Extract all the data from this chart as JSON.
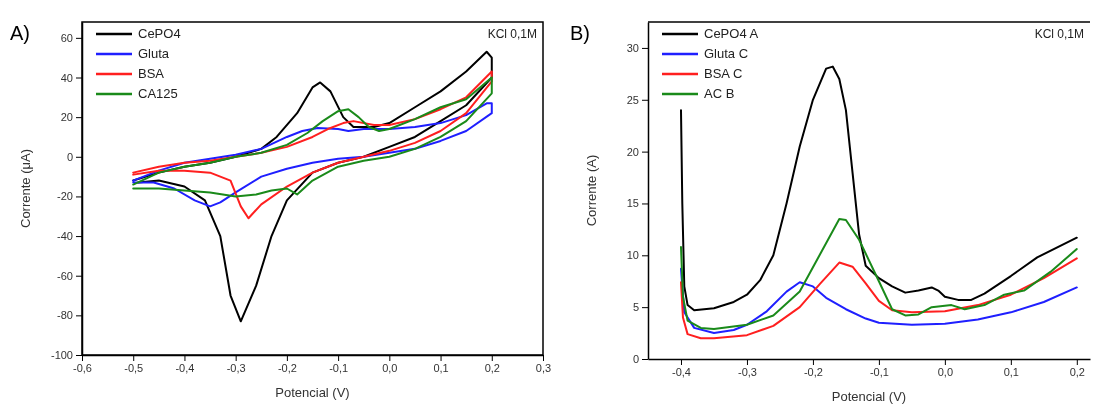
{
  "chart_data": [
    {
      "type": "line",
      "title": "A)",
      "xlabel": "Potencial (V)",
      "ylabel": "Corrente (μA)",
      "annotations": [
        "KCl 0,1M"
      ],
      "legend": "top left",
      "xlim": [
        -0.6,
        0.3
      ],
      "ylim": [
        -100,
        68
      ],
      "xticks": [
        {
          "value": -0.6,
          "label": "-0,6"
        },
        {
          "value": -0.5,
          "label": "-0,5"
        },
        {
          "value": -0.4,
          "label": "-0,4"
        },
        {
          "value": -0.3,
          "label": "-0,3"
        },
        {
          "value": -0.2,
          "label": "-0,2"
        },
        {
          "value": -0.1,
          "label": "-0,1"
        },
        {
          "value": 0,
          "label": "0,0"
        },
        {
          "value": 0.1,
          "label": "0,1"
        },
        {
          "value": 0.2,
          "label": "0,2"
        },
        {
          "value": 0.3,
          "label": "0,3"
        }
      ],
      "yticks": [
        -100,
        -80,
        -60,
        -40,
        -20,
        0,
        20,
        40,
        60
      ],
      "series": [
        {
          "name": "CePO4",
          "color": "#000000",
          "x": [
            -0.5,
            -0.45,
            -0.4,
            -0.35,
            -0.3,
            -0.25,
            -0.22,
            -0.18,
            -0.15,
            -0.135,
            -0.115,
            -0.09,
            -0.07,
            -0.03,
            0.0,
            0.05,
            0.1,
            0.15,
            0.19,
            0.2,
            0.2,
            0.15,
            0.1,
            0.05,
            0.0,
            -0.05,
            -0.1,
            -0.15,
            -0.2,
            -0.23,
            -0.26,
            -0.29,
            -0.31,
            -0.33,
            -0.36,
            -0.4,
            -0.45,
            -0.49
          ],
          "values": [
            -12,
            -8,
            -5,
            -3,
            0,
            4,
            10,
            22,
            35,
            37.5,
            33,
            20,
            15,
            15,
            17,
            25,
            33,
            43,
            53,
            50,
            40,
            26,
            18,
            10,
            5,
            0,
            -3,
            -8,
            -22,
            -40,
            -65,
            -83,
            -70,
            -40,
            -22,
            -15,
            -12,
            -13
          ]
        },
        {
          "name": "Gluta",
          "color": "#1f1fff",
          "x": [
            -0.5,
            -0.45,
            -0.4,
            -0.35,
            -0.3,
            -0.25,
            -0.2,
            -0.17,
            -0.14,
            -0.1,
            -0.08,
            -0.05,
            0.0,
            0.05,
            0.1,
            0.15,
            0.19,
            0.2,
            0.2,
            0.15,
            0.1,
            0.05,
            0.0,
            -0.05,
            -0.1,
            -0.15,
            -0.2,
            -0.25,
            -0.3,
            -0.33,
            -0.35,
            -0.38,
            -0.42,
            -0.46,
            -0.5
          ],
          "values": [
            -12,
            -7,
            -3,
            -1,
            1,
            4,
            10,
            13,
            14.5,
            14,
            13,
            14,
            14,
            15,
            17,
            21,
            27,
            27,
            22,
            13,
            8,
            4,
            2,
            0,
            -1,
            -3,
            -6,
            -10,
            -18,
            -23,
            -25,
            -22,
            -16,
            -13,
            -13
          ]
        },
        {
          "name": "BSA",
          "color": "#ff1f1f",
          "x": [
            -0.5,
            -0.45,
            -0.4,
            -0.35,
            -0.3,
            -0.25,
            -0.2,
            -0.15,
            -0.12,
            -0.09,
            -0.07,
            -0.03,
            0.0,
            0.05,
            0.1,
            0.15,
            0.2,
            0.2,
            0.15,
            0.1,
            0.05,
            0.0,
            -0.05,
            -0.1,
            -0.15,
            -0.2,
            -0.25,
            -0.275,
            -0.29,
            -0.31,
            -0.35,
            -0.4,
            -0.45,
            -0.5
          ],
          "values": [
            -8,
            -5,
            -3,
            -2,
            0,
            2,
            5,
            10,
            14,
            17,
            18,
            16,
            16,
            19,
            24,
            30,
            43,
            38,
            22,
            13,
            7,
            3,
            0,
            -3,
            -8,
            -15,
            -24,
            -31,
            -25,
            -12,
            -8,
            -7,
            -7,
            -9
          ]
        },
        {
          "name": "CA125",
          "color": "#1a8a1a",
          "x": [
            -0.5,
            -0.45,
            -0.4,
            -0.35,
            -0.3,
            -0.25,
            -0.2,
            -0.16,
            -0.13,
            -0.1,
            -0.08,
            -0.06,
            -0.04,
            -0.02,
            0.0,
            0.05,
            0.1,
            0.15,
            0.2,
            0.2,
            0.15,
            0.1,
            0.05,
            0.0,
            -0.05,
            -0.1,
            -0.15,
            -0.18,
            -0.2,
            -0.23,
            -0.26,
            -0.3,
            -0.35,
            -0.4,
            -0.45,
            -0.5
          ],
          "values": [
            -14,
            -8,
            -5,
            -3,
            0,
            2,
            6,
            12,
            18,
            23,
            24,
            20,
            15,
            13,
            14,
            19,
            25,
            29,
            40,
            32,
            18,
            10,
            4,
            0,
            -2,
            -5,
            -12,
            -19,
            -16,
            -17,
            -19,
            -20,
            -18,
            -17,
            -16,
            -16
          ]
        }
      ]
    },
    {
      "type": "line",
      "title": "B)",
      "xlabel": "Potencial (V)",
      "ylabel": "Corrente (A)",
      "annotations": [
        "KCl 0,1M"
      ],
      "legend": "top left",
      "xlim": [
        -0.45,
        0.22
      ],
      "ylim": [
        0,
        32.5
      ],
      "xticks": [
        {
          "value": -0.4,
          "label": "-0,4"
        },
        {
          "value": -0.3,
          "label": "-0,3"
        },
        {
          "value": -0.2,
          "label": "-0,2"
        },
        {
          "value": -0.1,
          "label": "-0,1"
        },
        {
          "value": 0,
          "label": "0,0"
        },
        {
          "value": 0.1,
          "label": "0,1"
        },
        {
          "value": 0.2,
          "label": "0,2"
        }
      ],
      "yticks": [
        0,
        5,
        10,
        15,
        20,
        25,
        30
      ],
      "series": [
        {
          "name": "CePO4 A",
          "color": "#000000",
          "x": [
            -0.4,
            -0.398,
            -0.395,
            -0.39,
            -0.38,
            -0.35,
            -0.32,
            -0.3,
            -0.28,
            -0.26,
            -0.24,
            -0.22,
            -0.2,
            -0.18,
            -0.17,
            -0.16,
            -0.15,
            -0.14,
            -0.13,
            -0.12,
            -0.1,
            -0.08,
            -0.06,
            -0.04,
            -0.02,
            -0.01,
            0.0,
            0.02,
            0.04,
            0.06,
            0.1,
            0.14,
            0.2
          ],
          "values": [
            24,
            15,
            7,
            5.2,
            4.7,
            4.9,
            5.5,
            6.2,
            7.6,
            10,
            15,
            20.5,
            25,
            28,
            28.2,
            27,
            24,
            18,
            12,
            9,
            7.8,
            7,
            6.4,
            6.6,
            6.9,
            6.6,
            6,
            5.7,
            5.7,
            6.3,
            8,
            9.8,
            11.7
          ]
        },
        {
          "name": "Gluta C",
          "color": "#1f1fff",
          "x": [
            -0.4,
            -0.395,
            -0.38,
            -0.35,
            -0.32,
            -0.3,
            -0.27,
            -0.24,
            -0.22,
            -0.2,
            -0.18,
            -0.15,
            -0.12,
            -0.1,
            -0.05,
            0.0,
            0.05,
            0.1,
            0.15,
            0.2
          ],
          "values": [
            8.7,
            4.5,
            3,
            2.5,
            2.8,
            3.3,
            4.6,
            6.5,
            7.4,
            7,
            5.9,
            4.8,
            3.9,
            3.5,
            3.3,
            3.4,
            3.8,
            4.5,
            5.5,
            6.9
          ]
        },
        {
          "name": "BSA C",
          "color": "#ff1f1f",
          "x": [
            -0.4,
            -0.397,
            -0.39,
            -0.37,
            -0.35,
            -0.3,
            -0.26,
            -0.22,
            -0.19,
            -0.16,
            -0.14,
            -0.12,
            -0.1,
            -0.08,
            -0.05,
            0.0,
            0.05,
            0.1,
            0.15,
            0.2
          ],
          "values": [
            7.4,
            4,
            2.4,
            2,
            2,
            2.3,
            3.2,
            5,
            7.2,
            9.3,
            8.9,
            7.3,
            5.6,
            4.7,
            4.5,
            4.6,
            5.2,
            6.2,
            7.8,
            9.7
          ]
        },
        {
          "name": "AC B",
          "color": "#1a8a1a",
          "x": [
            -0.4,
            -0.397,
            -0.39,
            -0.37,
            -0.35,
            -0.3,
            -0.26,
            -0.22,
            -0.19,
            -0.16,
            -0.15,
            -0.13,
            -0.1,
            -0.08,
            -0.06,
            -0.04,
            -0.02,
            0.01,
            0.03,
            0.06,
            0.09,
            0.12,
            0.16,
            0.2
          ],
          "values": [
            10.8,
            6,
            3.7,
            3,
            2.9,
            3.3,
            4.2,
            6.5,
            10,
            13.5,
            13.4,
            11.5,
            7.5,
            4.8,
            4.2,
            4.3,
            5,
            5.2,
            4.8,
            5.2,
            6.2,
            6.6,
            8.4,
            10.6
          ]
        }
      ]
    }
  ]
}
